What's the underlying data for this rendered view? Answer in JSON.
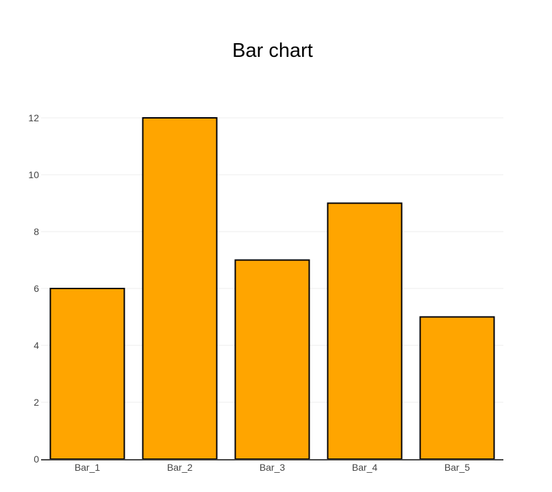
{
  "chart_data": {
    "type": "bar",
    "title": "Bar chart",
    "xlabel": "",
    "ylabel": "",
    "categories": [
      "Bar_1",
      "Bar_2",
      "Bar_3",
      "Bar_4",
      "Bar_5"
    ],
    "values": [
      6,
      12,
      7,
      9,
      5
    ],
    "ylim": [
      0,
      12
    ],
    "yticks": [
      0,
      2,
      4,
      6,
      8,
      10,
      12
    ],
    "grid": true,
    "legend": "none",
    "colors": {
      "bar_fill": "#FFA500",
      "bar_stroke": "#000000",
      "grid": "#eeeeee",
      "axis_line": "#444444",
      "tick_text": "#444444",
      "title": "#000000"
    }
  }
}
